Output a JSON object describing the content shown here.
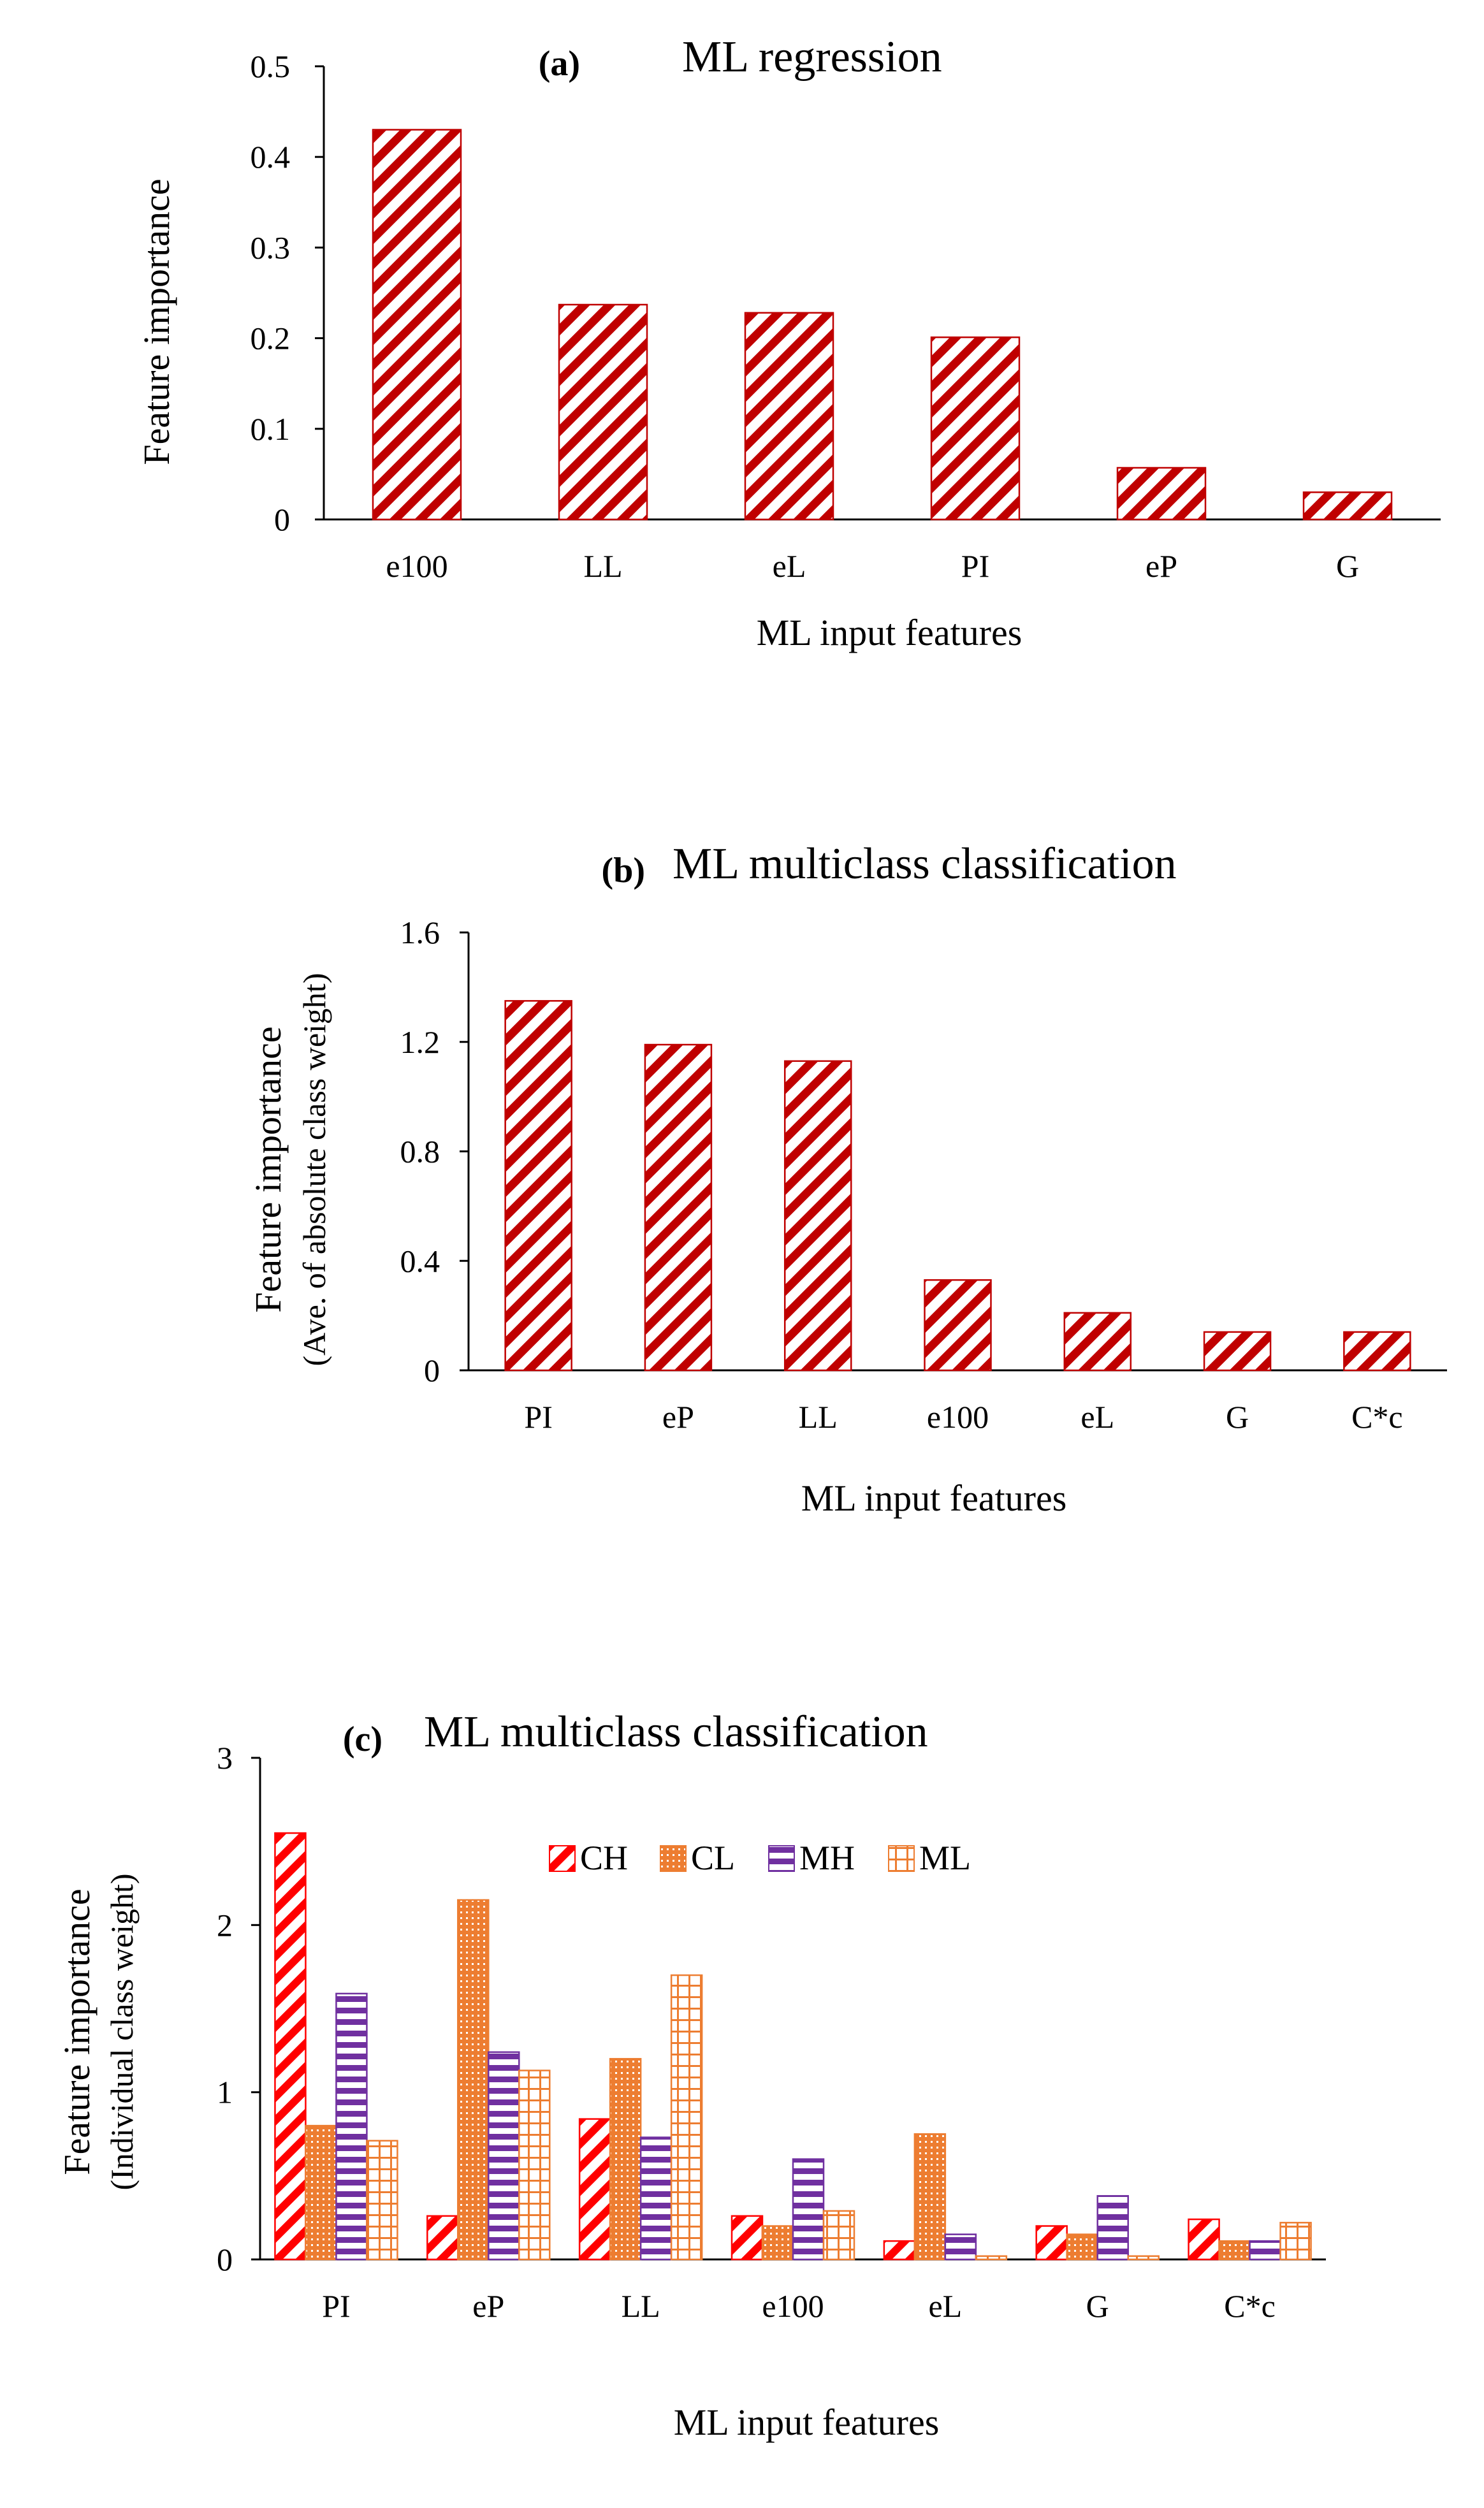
{
  "chart_data": [
    {
      "type": "bar",
      "panel": "(a)",
      "title": "ML regression",
      "xlabel": "ML input features",
      "ylabel": "Feature importance",
      "ylabel2": "",
      "ylim": [
        0,
        0.5
      ],
      "yticks": [
        "0",
        "0.1",
        "0.2",
        "0.3",
        "0.4",
        "0.5"
      ],
      "categories": [
        "e100",
        "LL",
        "eL",
        "PI",
        "eP",
        "G"
      ],
      "series": [
        {
          "name": "Feature importance",
          "values": [
            0.43,
            0.237,
            0.228,
            0.201,
            0.057,
            0.03
          ],
          "color": "#c00000",
          "pattern": "diag"
        }
      ]
    },
    {
      "type": "bar",
      "panel": "(b)",
      "title": "ML multiclass classification",
      "xlabel": "ML input features",
      "ylabel": "Feature importance",
      "ylabel2": "(Ave. of absolute class weight)",
      "ylim": [
        0,
        1.6
      ],
      "yticks": [
        "0",
        "0.4",
        "0.8",
        "1.2",
        "1.6"
      ],
      "categories": [
        "PI",
        "eP",
        "LL",
        "e100",
        "eL",
        "G",
        "C*c"
      ],
      "series": [
        {
          "name": "Feature importance",
          "values": [
            1.35,
            1.19,
            1.13,
            0.33,
            0.21,
            0.14,
            0.14
          ],
          "color": "#c00000",
          "pattern": "diag"
        }
      ]
    },
    {
      "type": "bar",
      "panel": "(c)",
      "title": "ML multiclass classification",
      "xlabel": "ML input features",
      "ylabel": "Feature importance",
      "ylabel2": "(Individual class weight)",
      "ylim": [
        0,
        3
      ],
      "yticks": [
        "0",
        "1",
        "2",
        "3"
      ],
      "categories": [
        "PI",
        "eP",
        "LL",
        "e100",
        "eL",
        "G",
        "C*c"
      ],
      "legend": "top-center",
      "series": [
        {
          "name": "CH",
          "values": [
            2.55,
            0.26,
            0.84,
            0.26,
            0.11,
            0.2,
            0.24
          ],
          "color": "#ff0000",
          "pattern": "diag"
        },
        {
          "name": "CL",
          "values": [
            0.8,
            2.15,
            1.2,
            0.2,
            0.75,
            0.15,
            0.11
          ],
          "color": "#ed7d31",
          "pattern": "dots"
        },
        {
          "name": "MH",
          "values": [
            1.59,
            1.24,
            0.73,
            0.6,
            0.15,
            0.38,
            0.11
          ],
          "color": "#7030a0",
          "pattern": "hstripe"
        },
        {
          "name": "ML",
          "values": [
            0.71,
            1.13,
            1.7,
            0.29,
            0.02,
            0.02,
            0.22
          ],
          "color": "#ed7d31",
          "pattern": "grid"
        }
      ]
    }
  ]
}
